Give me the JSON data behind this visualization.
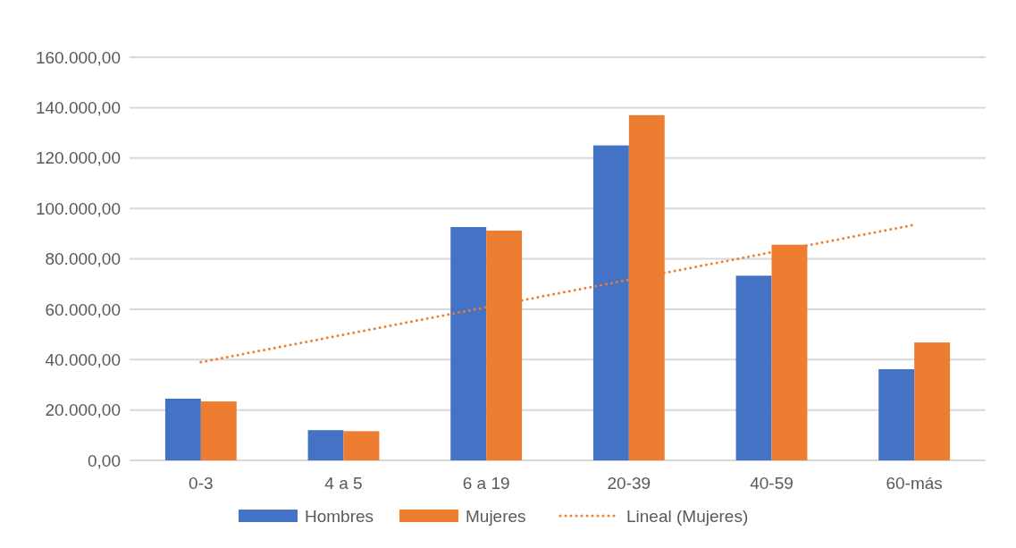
{
  "chart_data": {
    "type": "bar",
    "categories": [
      "0-3",
      "4 a 5",
      "6 a 19",
      "20-39",
      "40-59",
      "60-más"
    ],
    "series": [
      {
        "name": "Hombres",
        "color": "#4472c4",
        "values": [
          24500,
          12000,
          92600,
          125000,
          73300,
          36200
        ]
      },
      {
        "name": "Mujeres",
        "color": "#ed7d31",
        "values": [
          23400,
          11600,
          91200,
          137000,
          85600,
          46800
        ]
      },
      {
        "name": "Lineal (Mujeres)",
        "type": "line",
        "color": "#ed7d31",
        "line_style": "dotted",
        "marker": "none",
        "values": [
          39000,
          49900,
          60800,
          71700,
          82600,
          93500
        ]
      }
    ],
    "ylim": [
      0,
      160000
    ],
    "yticks": [
      {
        "value": 0,
        "label": "0,00"
      },
      {
        "value": 20000,
        "label": "20.000,00"
      },
      {
        "value": 40000,
        "label": "40.000,00"
      },
      {
        "value": 60000,
        "label": "60.000,00"
      },
      {
        "value": 80000,
        "label": "80.000,00"
      },
      {
        "value": 100000,
        "label": "100.000,00"
      },
      {
        "value": 120000,
        "label": "120.000,00"
      },
      {
        "value": 140000,
        "label": "140.000,00"
      },
      {
        "value": 160000,
        "label": "160.000,00"
      }
    ],
    "grid": "y",
    "legend": "bottom"
  }
}
